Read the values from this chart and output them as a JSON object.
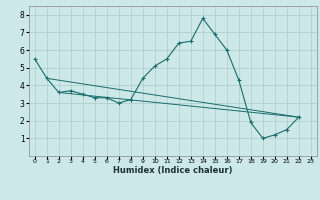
{
  "xlabel": "Humidex (Indice chaleur)",
  "bg_color": "#cce8e8",
  "grid_color": "#aacccc",
  "line_color": "#1a6b6b",
  "xlim": [
    -0.5,
    23.5
  ],
  "ylim": [
    0,
    8.5
  ],
  "xticks": [
    0,
    1,
    2,
    3,
    4,
    5,
    6,
    7,
    8,
    9,
    10,
    11,
    12,
    13,
    14,
    15,
    16,
    17,
    18,
    19,
    20,
    21,
    22,
    23
  ],
  "yticks": [
    1,
    2,
    3,
    4,
    5,
    6,
    7,
    8
  ],
  "series_main": {
    "x": [
      0,
      1,
      2,
      3,
      4,
      5,
      6,
      7,
      8,
      9,
      10,
      11,
      12,
      13,
      14,
      15,
      16,
      17,
      18,
      19,
      20,
      21,
      22
    ],
    "y": [
      5.5,
      4.4,
      3.6,
      3.7,
      3.5,
      3.3,
      3.3,
      3.0,
      3.2,
      4.4,
      5.1,
      5.5,
      6.4,
      6.5,
      7.8,
      6.9,
      6.0,
      4.3,
      1.9,
      1.0,
      1.2,
      1.5,
      2.2
    ]
  },
  "series_line1": {
    "x": [
      2,
      22
    ],
    "y": [
      3.6,
      2.2
    ]
  },
  "series_line2": {
    "x": [
      2,
      22
    ],
    "y": [
      3.6,
      2.2
    ]
  },
  "series_line3": {
    "x": [
      1,
      22
    ],
    "y": [
      4.4,
      2.2
    ]
  }
}
